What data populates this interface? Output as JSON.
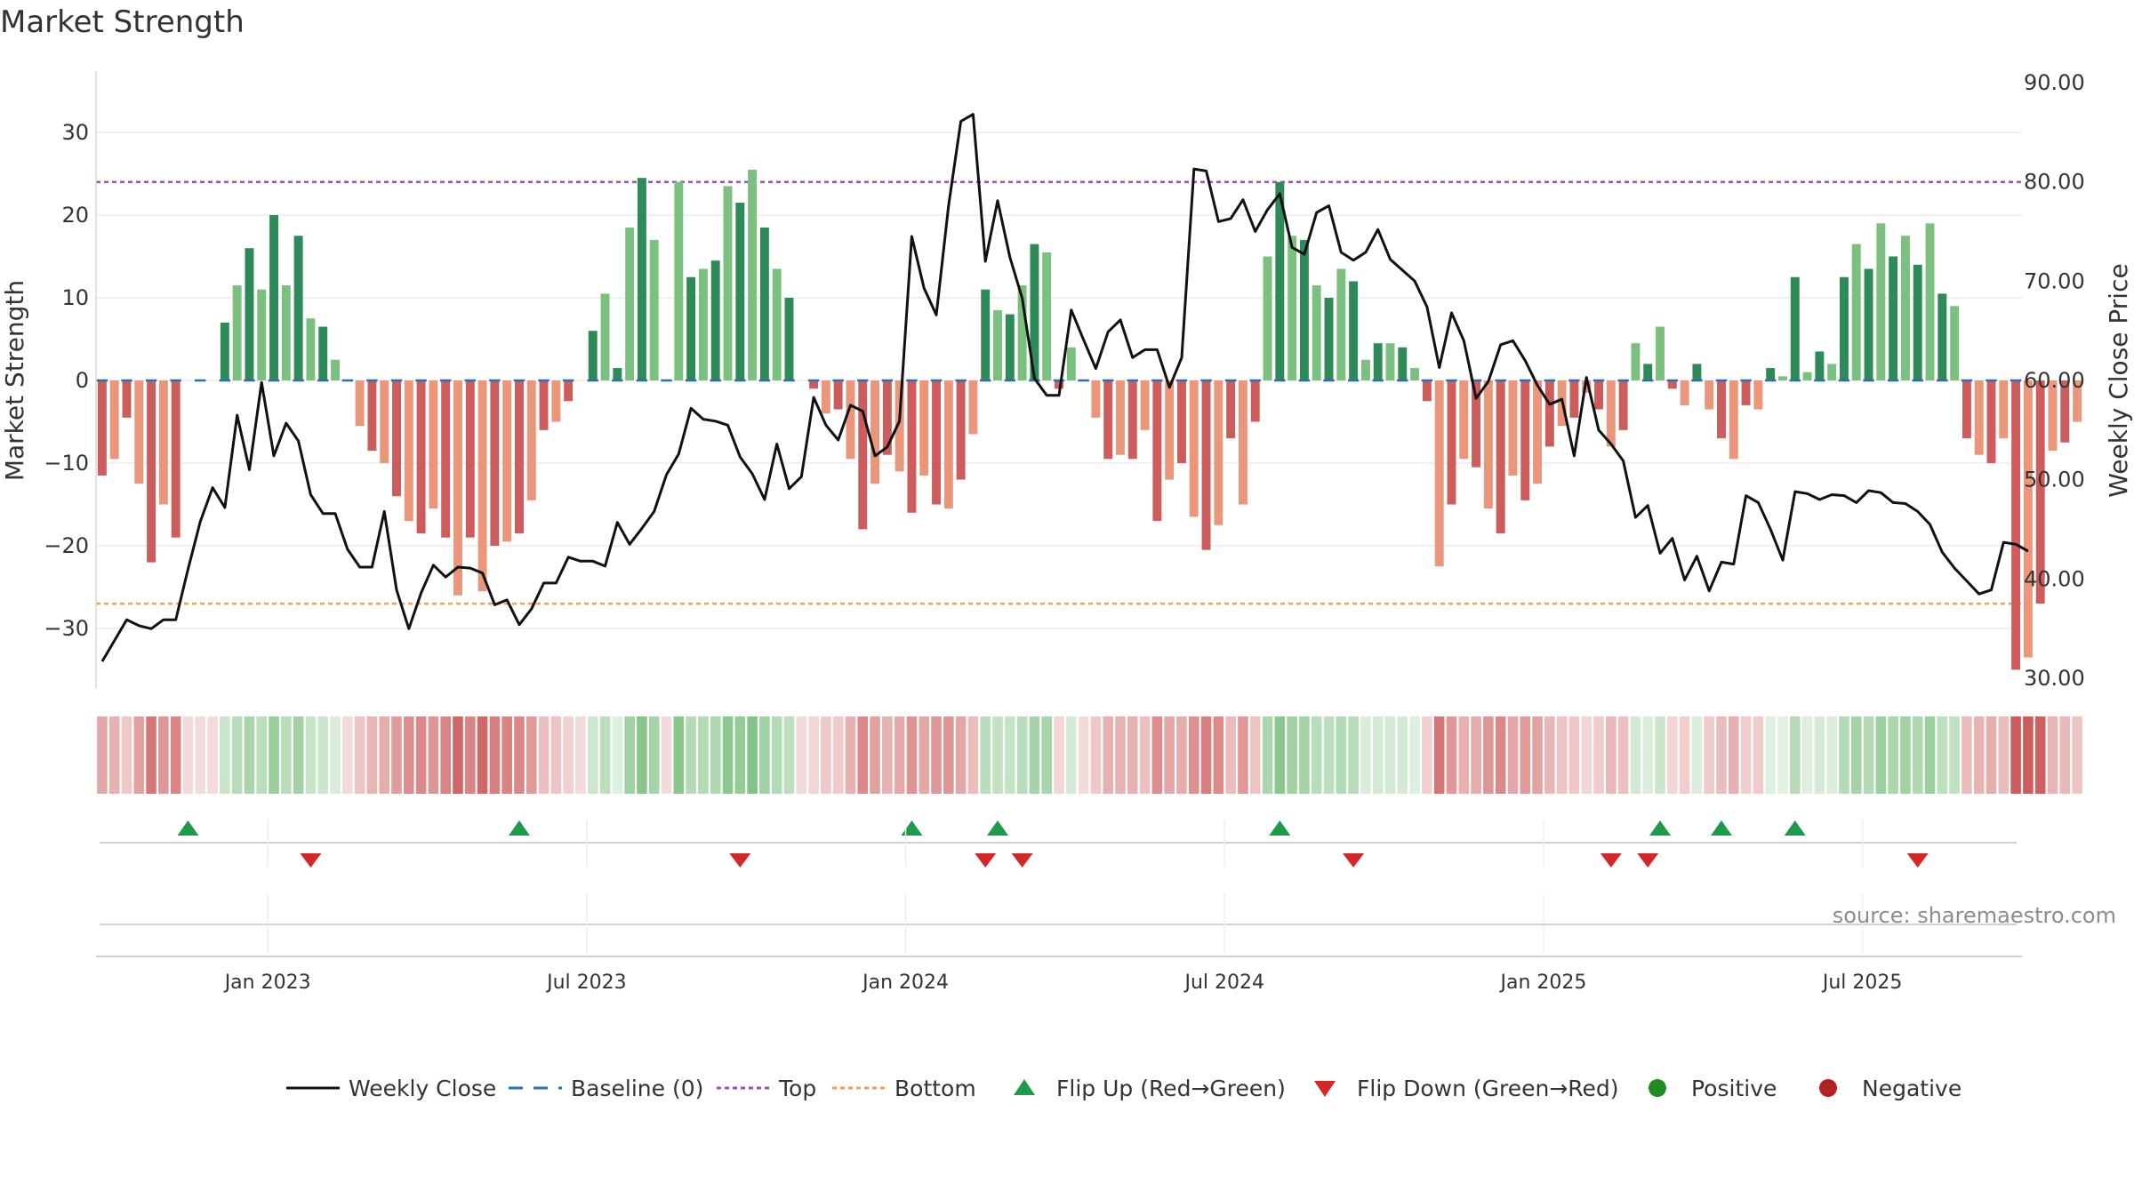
{
  "chart_data": {
    "type": "bar+line",
    "title": "Market Strength",
    "ylabel": "Market Strength",
    "y2label": "Weekly Close Price",
    "ylim": [
      -37,
      38
    ],
    "y2lim": [
      28,
      92
    ],
    "yticks": [
      "30",
      "20",
      "10",
      "0",
      "−10",
      "−20",
      "−30"
    ],
    "ytick_values": [
      30,
      20,
      10,
      0,
      -10,
      -20,
      -30
    ],
    "y2ticks": [
      "90.00",
      "80.00",
      "70.00",
      "60.00",
      "50.00",
      "40.00",
      "30.00"
    ],
    "y2tick_values": [
      90,
      80,
      70,
      60,
      50,
      40,
      30
    ],
    "xlabels": [
      "Jan 2023",
      "Jul 2023",
      "Jan 2024",
      "Jul 2024",
      "Jan 2025",
      "Jul 2025"
    ],
    "xlabel_weeks": [
      14,
      40,
      66,
      92,
      118,
      144
    ],
    "top_threshold": 24,
    "bottom_threshold": -27,
    "weeks": 157,
    "strength": [
      -11.5,
      -9.5,
      -4.5,
      -12.5,
      -22,
      -15,
      -19,
      0,
      0,
      0,
      7,
      11.5,
      16,
      11,
      20,
      11.5,
      17.5,
      7.5,
      6.5,
      2.5,
      0,
      -5.5,
      -8.5,
      -10,
      -14,
      -17,
      -18.5,
      -15.5,
      -19,
      -26,
      -19,
      -25.5,
      -20,
      -19.5,
      -18.5,
      -14.5,
      -6,
      -5,
      -2.5,
      0,
      6,
      10.5,
      1.5,
      18.5,
      24.5,
      17,
      0,
      24,
      12.5,
      13.5,
      14.5,
      23.5,
      21.5,
      25.5,
      18.5,
      13.5,
      10,
      0,
      -1,
      -4,
      -3.5,
      -9.5,
      -18,
      -12.5,
      -9,
      -11,
      -16,
      -11.5,
      -15,
      -15.5,
      -12,
      -6.5,
      11,
      8.5,
      8,
      11.5,
      16.5,
      15.5,
      -1,
      4,
      0,
      -4.5,
      -9.5,
      -9,
      -9.5,
      -6,
      -17,
      -12,
      -10,
      -16.5,
      -20.5,
      -17.5,
      -7,
      -15,
      -5,
      15,
      24,
      17.5,
      17,
      11.5,
      10,
      13.5,
      12,
      2.5,
      4.5,
      4.5,
      4,
      1.5,
      -2.5,
      -22.5,
      -15,
      -9.5,
      -10.5,
      -15.5,
      -18.5,
      -11.5,
      -14.5,
      -12.5,
      -8,
      -5.5,
      -4.5,
      -1.5,
      -3.5,
      -8,
      -6,
      4.5,
      2,
      6.5,
      -1,
      -3,
      2,
      -3.5,
      -7,
      -9.5,
      -3,
      -3.5,
      1.5,
      0.5,
      12.5,
      1,
      3.5,
      2,
      12.5,
      16.5,
      13.5,
      19,
      15,
      17.5,
      14,
      19,
      10.5,
      9,
      -7,
      -9,
      -10,
      -7,
      -35,
      -33.5,
      -27,
      -8.5,
      -7.5,
      -5
    ],
    "close": [
      31.7,
      33.8,
      35.9,
      35.3,
      35.0,
      35.9,
      35.9,
      41.0,
      45.8,
      49.2,
      47.2,
      56.5,
      51.0,
      59.8,
      52.4,
      55.7,
      53.9,
      48.5,
      46.6,
      46.6,
      43.0,
      41.2,
      41.2,
      46.8,
      38.9,
      35.0,
      38.6,
      41.4,
      40.2,
      41.2,
      41.1,
      40.6,
      37.4,
      37.9,
      35.4,
      37.0,
      39.6,
      39.6,
      42.2,
      41.8,
      41.8,
      41.3,
      45.7,
      43.5,
      45.1,
      46.8,
      50.5,
      52.6,
      57.2,
      56.1,
      55.9,
      55.5,
      52.3,
      50.6,
      48.0,
      53.6,
      49.1,
      50.3,
      58.3,
      55.5,
      54.0,
      57.5,
      56.9,
      52.4,
      53.3,
      55.9,
      74.5,
      69.3,
      66.6,
      77.6,
      86.1,
      86.8,
      72.0,
      78.1,
      72.4,
      68.3,
      60.2,
      58.5,
      58.5,
      67.1,
      64.1,
      61.2,
      64.9,
      66.1,
      62.3,
      63.1,
      63.1,
      59.3,
      62.3,
      81.3,
      81.1,
      76.0,
      76.3,
      78.2,
      75.0,
      77.2,
      78.8,
      73.4,
      72.7,
      76.9,
      77.6,
      72.9,
      72.1,
      72.9,
      75.2,
      72.2,
      71.1,
      70.0,
      67.4,
      61.3,
      66.8,
      64.0,
      58.2,
      59.9,
      63.6,
      64.0,
      62.0,
      59.5,
      57.6,
      58.1,
      52.4,
      60.3,
      55.0,
      53.6,
      51.9,
      46.2,
      47.4,
      42.6,
      44.1,
      39.9,
      42.3,
      38.8,
      41.7,
      41.5,
      48.4,
      47.7,
      45.0,
      41.9,
      48.8,
      48.6,
      48.0,
      48.5,
      48.4,
      47.7,
      48.9,
      48.7,
      47.7,
      47.6,
      46.8,
      45.5,
      42.7,
      41.1,
      39.8,
      38.5,
      38.9,
      43.7,
      43.5,
      42.8
    ],
    "flip_up_weeks": [
      7,
      34,
      66,
      73,
      96,
      127,
      132,
      138
    ],
    "flip_down_weeks": [
      17,
      52,
      72,
      75,
      102,
      123,
      126,
      148
    ],
    "colors": {
      "strong_green": "#2e8b57",
      "light_green": "#7cc07f",
      "strong_red": "#cd5c5c",
      "light_red": "#e9967a",
      "price_line": "#111111",
      "baseline": "#2a6fb0",
      "top": "#9b4fb8",
      "bottom": "#ef9e5a",
      "flip_up": "#1f9a4a",
      "flip_down": "#d62728",
      "positive": "#228b22",
      "negative": "#b22222"
    },
    "legend": [
      {
        "label": "Weekly Close",
        "kind": "line",
        "color": "#111111"
      },
      {
        "label": "Baseline (0)",
        "kind": "dash",
        "color": "#2a6fb0"
      },
      {
        "label": "Top",
        "kind": "dot",
        "color": "#9b4fb8"
      },
      {
        "label": "Bottom",
        "kind": "dot",
        "color": "#ef9e5a"
      },
      {
        "label": "Flip Up (Red→Green)",
        "kind": "tri-up",
        "color": "#1f9a4a"
      },
      {
        "label": "Flip Down (Green→Red)",
        "kind": "tri-down",
        "color": "#d62728"
      },
      {
        "label": "Positive",
        "kind": "circle",
        "color": "#228b22"
      },
      {
        "label": "Negative",
        "kind": "circle",
        "color": "#b22222"
      }
    ],
    "source": "source: sharemaestro.com"
  }
}
